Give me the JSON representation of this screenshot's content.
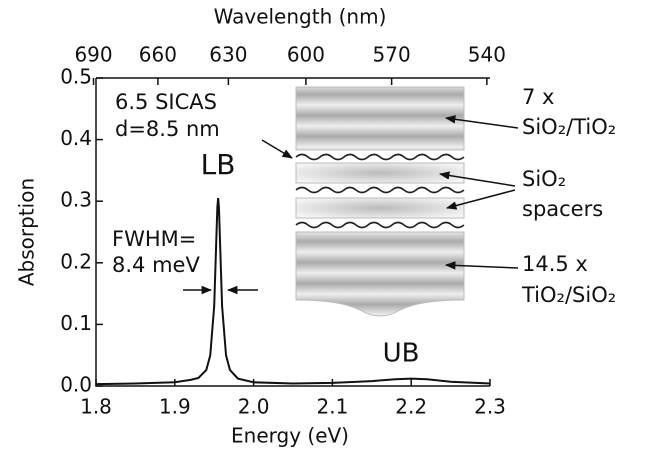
{
  "chart_data": {
    "type": "line",
    "xlabel": "Energy (eV)",
    "ylabel": "Absorption",
    "x2label": "Wavelength (nm)",
    "xlim": [
      1.8,
      2.3
    ],
    "xticks": [
      1.8,
      1.9,
      {
        "value": 2.0,
        "label": "2.0"
      },
      2.1,
      2.2,
      2.3
    ],
    "ylim": [
      0,
      0.5
    ],
    "yticks": [
      {
        "value": 0,
        "label": "0.0"
      },
      0.1,
      0.2,
      0.3,
      0.4,
      0.5
    ],
    "x2ticks": [
      690,
      660,
      630,
      600,
      570,
      540
    ],
    "color": "#111111",
    "x": [
      1.8,
      1.85,
      1.9,
      1.92,
      1.93,
      1.94,
      1.945,
      1.95,
      1.953,
      1.954,
      1.955,
      1.956,
      1.957,
      1.96,
      1.965,
      1.97,
      1.98,
      2.0,
      2.05,
      2.1,
      2.15,
      2.18,
      2.2,
      2.22,
      2.25,
      2.3
    ],
    "values": [
      0.003,
      0.004,
      0.006,
      0.01,
      0.013,
      0.026,
      0.05,
      0.13,
      0.25,
      0.29,
      0.305,
      0.29,
      0.25,
      0.13,
      0.05,
      0.026,
      0.012,
      0.006,
      0.004,
      0.005,
      0.008,
      0.011,
      0.012,
      0.011,
      0.007,
      0.004
    ],
    "annotations": [
      "LB",
      "UB",
      "FWHM=",
      "8.4 meV",
      "6.5 SICAS",
      "d=8.5 nm",
      "7 x",
      "SiO₂/TiO₂",
      "SiO₂",
      "spacers",
      "14.5 x",
      "TiO₂/SiO₂"
    ]
  }
}
